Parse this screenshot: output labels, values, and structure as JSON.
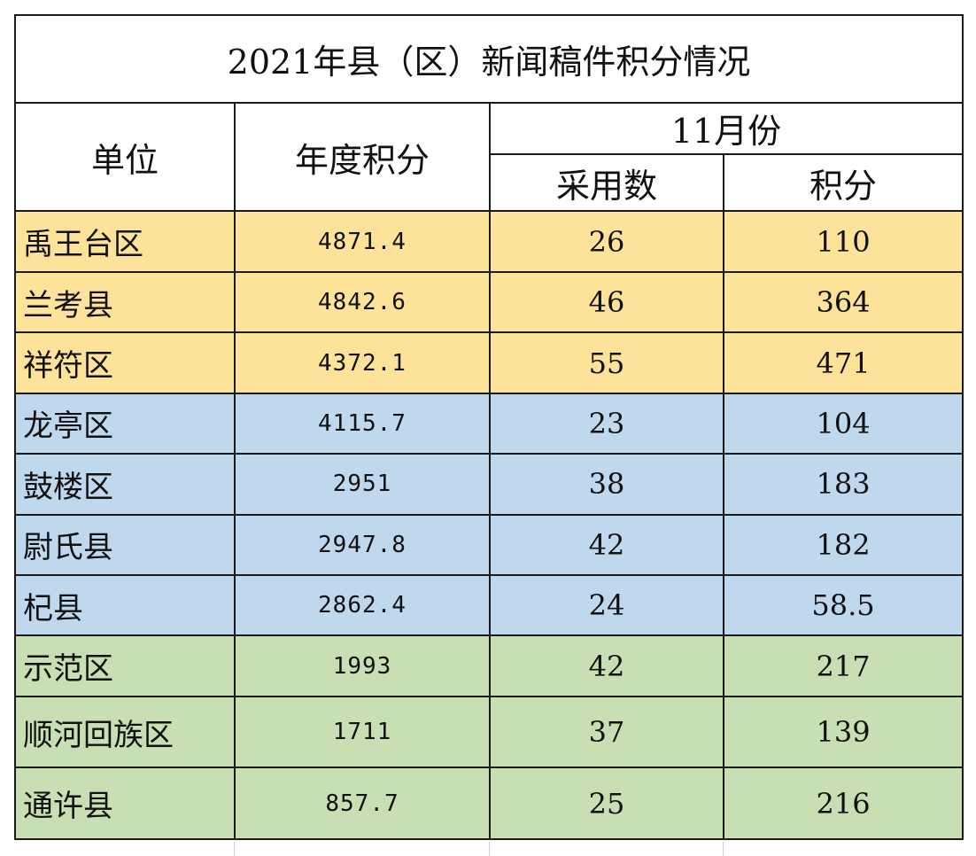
{
  "title": "2021年县（区）新闻稿件积分情况",
  "headers": {
    "unit": "单位",
    "annual": "年度积分",
    "month": "11月份",
    "adopted": "采用数",
    "score": "积分"
  },
  "group_colors": {
    "yellow": "#fde29a",
    "blue": "#c0d8ee",
    "green": "#c7dfb2"
  },
  "rows": [
    {
      "unit": "禹王台区",
      "annual": "4871.4",
      "adopted": "26",
      "score": "110",
      "group": "yellow"
    },
    {
      "unit": "兰考县",
      "annual": "4842.6",
      "adopted": "46",
      "score": "364",
      "group": "yellow"
    },
    {
      "unit": "祥符区",
      "annual": "4372.1",
      "adopted": "55",
      "score": "471",
      "group": "yellow"
    },
    {
      "unit": "龙亭区",
      "annual": "4115.7",
      "adopted": "23",
      "score": "104",
      "group": "blue"
    },
    {
      "unit": "鼓楼区",
      "annual": "2951",
      "adopted": "38",
      "score": "183",
      "group": "blue"
    },
    {
      "unit": "尉氏县",
      "annual": "2947.8",
      "adopted": "42",
      "score": "182",
      "group": "blue"
    },
    {
      "unit": "杞县",
      "annual": "2862.4",
      "adopted": "24",
      "score": "58.5",
      "group": "blue"
    },
    {
      "unit": "示范区",
      "annual": "1993",
      "adopted": "42",
      "score": "217",
      "group": "green"
    },
    {
      "unit": "顺河回族区",
      "annual": "1711",
      "adopted": "37",
      "score": "139",
      "group": "green"
    },
    {
      "unit": "通许县",
      "annual": "857.7",
      "adopted": "25",
      "score": "216",
      "group": "green"
    }
  ]
}
